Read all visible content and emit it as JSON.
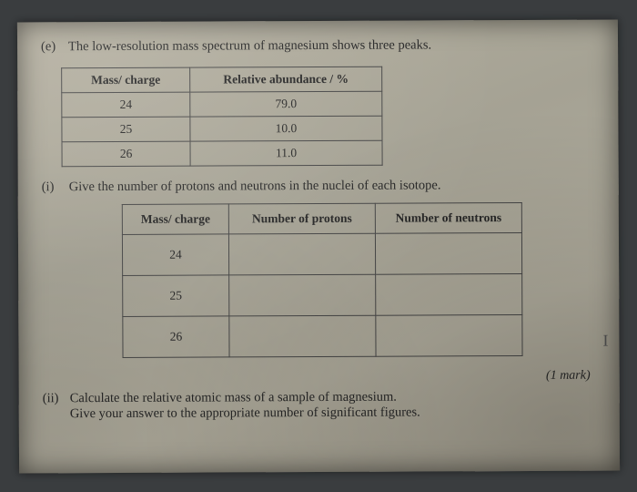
{
  "question": {
    "part_label": "(e)",
    "prompt": "The low-resolution mass spectrum of magnesium shows three peaks."
  },
  "table1": {
    "headers": {
      "col1": "Mass/ charge",
      "col2": "Relative abundance / %"
    },
    "rows": [
      {
        "mc": "24",
        "ra": "79.0"
      },
      {
        "mc": "25",
        "ra": "10.0"
      },
      {
        "mc": "26",
        "ra": "11.0"
      }
    ],
    "border_color": "#4a4a4a",
    "font_size_pt": 13.5
  },
  "sub_i": {
    "label": "(i)",
    "text": "Give the number of protons and neutrons in the nuclei of each isotope."
  },
  "table2": {
    "headers": {
      "col1": "Mass/ charge",
      "col2": "Number of protons",
      "col3": "Number of neutrons"
    },
    "rows": [
      {
        "mc": "24",
        "p": "",
        "n": ""
      },
      {
        "mc": "25",
        "p": "",
        "n": ""
      },
      {
        "mc": "26",
        "p": "",
        "n": ""
      }
    ],
    "border_color": "#4a4a4a",
    "font_size_pt": 13.5
  },
  "mark_i": "(1 mark)",
  "sub_ii": {
    "label": "(ii)",
    "line1": "Calculate the relative atomic mass of a sample of magnesium.",
    "line2": "Give your answer to the appropriate number of significant figures."
  },
  "cursor_glyph": "I",
  "palette": {
    "paper_bg": "#aca896",
    "text": "#2a2a2a",
    "outer_bg": "#3a3d3f"
  }
}
